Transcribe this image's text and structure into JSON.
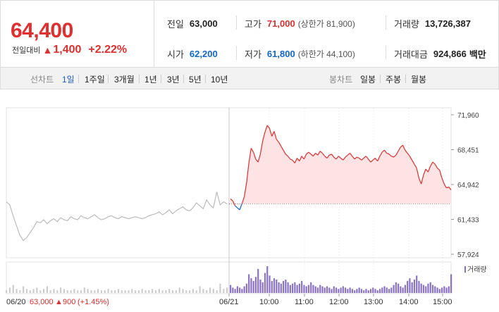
{
  "quote": {
    "price": "64,400",
    "change_label": "전일대비",
    "change_arrow": "▲",
    "change_value": "1,400",
    "change_pct": "+2.22%",
    "prev_label": "전일",
    "prev_value": "63,000",
    "high_label": "고가",
    "high_value": "71,000",
    "upper_limit": "(상한가 81,900)",
    "volume_label": "거래량",
    "volume_value": "13,726,387",
    "open_label": "시가",
    "open_value": "62,200",
    "low_label": "저가",
    "low_value": "61,800",
    "lower_limit": "(하한가 44,100)",
    "amount_label": "거래대금",
    "amount_value": "924,866",
    "amount_unit": "백만"
  },
  "colors": {
    "up": "#e12e2e",
    "down": "#1266cc",
    "prev_line": "#bbbbbb",
    "fill": "#fde3e3",
    "volume_prev": "#cccccc",
    "volume_today": "#8a72c4"
  },
  "periods": {
    "label": "선차트",
    "items": [
      "1일",
      "1주일",
      "3개월",
      "1년",
      "3년",
      "5년",
      "10년"
    ],
    "selected": "1일",
    "candle_label": "봉차트",
    "candle_items": [
      "일봉",
      "주봉",
      "월봉"
    ]
  },
  "chart_data": {
    "type": "line",
    "ylim": [
      57924,
      71960
    ],
    "y_ticks": [
      "71,960",
      "68,451",
      "64,942",
      "61,433",
      "57,924"
    ],
    "y_tick_values": [
      71960,
      68451,
      64942,
      61433,
      57924
    ],
    "reference_price": 63000,
    "x_ticks": [
      "06/21",
      "10:00",
      "11:00",
      "12:00",
      "13:00",
      "14:00",
      "15:00"
    ],
    "prev_day_label": {
      "date": "06/20",
      "close": "63,000",
      "arrow": "▲",
      "change": "900",
      "pct": "(+1.45%)"
    },
    "volume_label": "거래량",
    "series": [
      {
        "day": "06/20",
        "values": [
          63200,
          62900,
          61800,
          60800,
          59800,
          59300,
          59600,
          60100,
          60600,
          61200,
          61100,
          61400,
          61000,
          61300,
          61500,
          61200,
          61600,
          61400,
          61300,
          61700,
          61500,
          61400,
          61800,
          61600,
          61500,
          61700,
          61900,
          61600,
          61400,
          61500,
          61700,
          61800,
          61600,
          61500,
          61700,
          61600,
          61500,
          61600,
          61700,
          61600,
          61500,
          61600,
          61800,
          61900,
          62000,
          62200,
          61900,
          62100,
          62400,
          62000,
          62300,
          62500,
          62700,
          62400,
          62300,
          62600,
          63100,
          62800,
          62500,
          63400,
          62900,
          62600,
          64200,
          62900,
          63200,
          63000
        ]
      },
      {
        "day": "06/21",
        "values": [
          63500,
          63300,
          62800,
          62600,
          62400,
          63000,
          63700,
          65100,
          67100,
          68600,
          68200,
          67500,
          67200,
          68000,
          69300,
          70200,
          70900,
          70600,
          69800,
          70300,
          69500,
          69200,
          68800,
          68400,
          68000,
          67800,
          67500,
          67400,
          67100,
          67600,
          67300,
          67800,
          67500,
          68000,
          68200,
          68000,
          67800,
          68100,
          67900,
          68300,
          68100,
          67800,
          67600,
          67900,
          68000,
          67700,
          67500,
          67800,
          67600,
          67400,
          67700,
          67900,
          68100,
          67800,
          67500,
          67700,
          67600,
          67400,
          67600,
          67800,
          67500,
          67200,
          67400,
          67600,
          67300,
          67800,
          68200,
          68400,
          68100,
          68000,
          67800,
          67700,
          67900,
          68300,
          68700,
          68900,
          68400,
          68100,
          67800,
          67400,
          67000,
          66600,
          65600,
          65000,
          65900,
          66500,
          66200,
          66800,
          67200,
          67000,
          66600,
          66400,
          65600,
          65000,
          64600,
          64700,
          64400
        ]
      }
    ],
    "volume": [
      {
        "day": "06/20",
        "values": [
          2,
          4,
          6,
          3,
          2,
          5,
          3,
          2,
          3,
          4,
          2,
          3,
          5,
          2,
          3,
          2,
          4,
          3,
          2,
          2,
          3,
          2,
          2,
          4,
          3,
          2,
          2,
          3,
          2,
          2,
          3,
          2,
          2,
          3,
          2,
          2,
          2,
          3,
          2,
          2,
          3,
          2,
          2,
          3,
          2,
          3,
          2,
          2,
          3,
          2,
          2,
          4,
          3,
          2,
          2,
          3,
          2,
          5,
          3,
          2,
          4,
          3,
          2,
          7,
          3,
          4
        ]
      },
      {
        "day": "06/21",
        "values": [
          6,
          4,
          3,
          5,
          4,
          3,
          5,
          7,
          14,
          11,
          9,
          12,
          18,
          10,
          8,
          15,
          20,
          13,
          9,
          11,
          10,
          8,
          7,
          9,
          10,
          8,
          6,
          7,
          8,
          6,
          7,
          9,
          6,
          5,
          6,
          8,
          6,
          5,
          4,
          6,
          5,
          4,
          5,
          4,
          3,
          5,
          4,
          3,
          4,
          5,
          4,
          3,
          4,
          3,
          2,
          3,
          4,
          3,
          2,
          3,
          2,
          3,
          4,
          3,
          2,
          3,
          4,
          5,
          4,
          3,
          4,
          6,
          8,
          7,
          5,
          4,
          6,
          9,
          11,
          8,
          10,
          13,
          9,
          7,
          6,
          5,
          7,
          8,
          6,
          5,
          4,
          3,
          4,
          5,
          4,
          5,
          14
        ]
      }
    ]
  }
}
